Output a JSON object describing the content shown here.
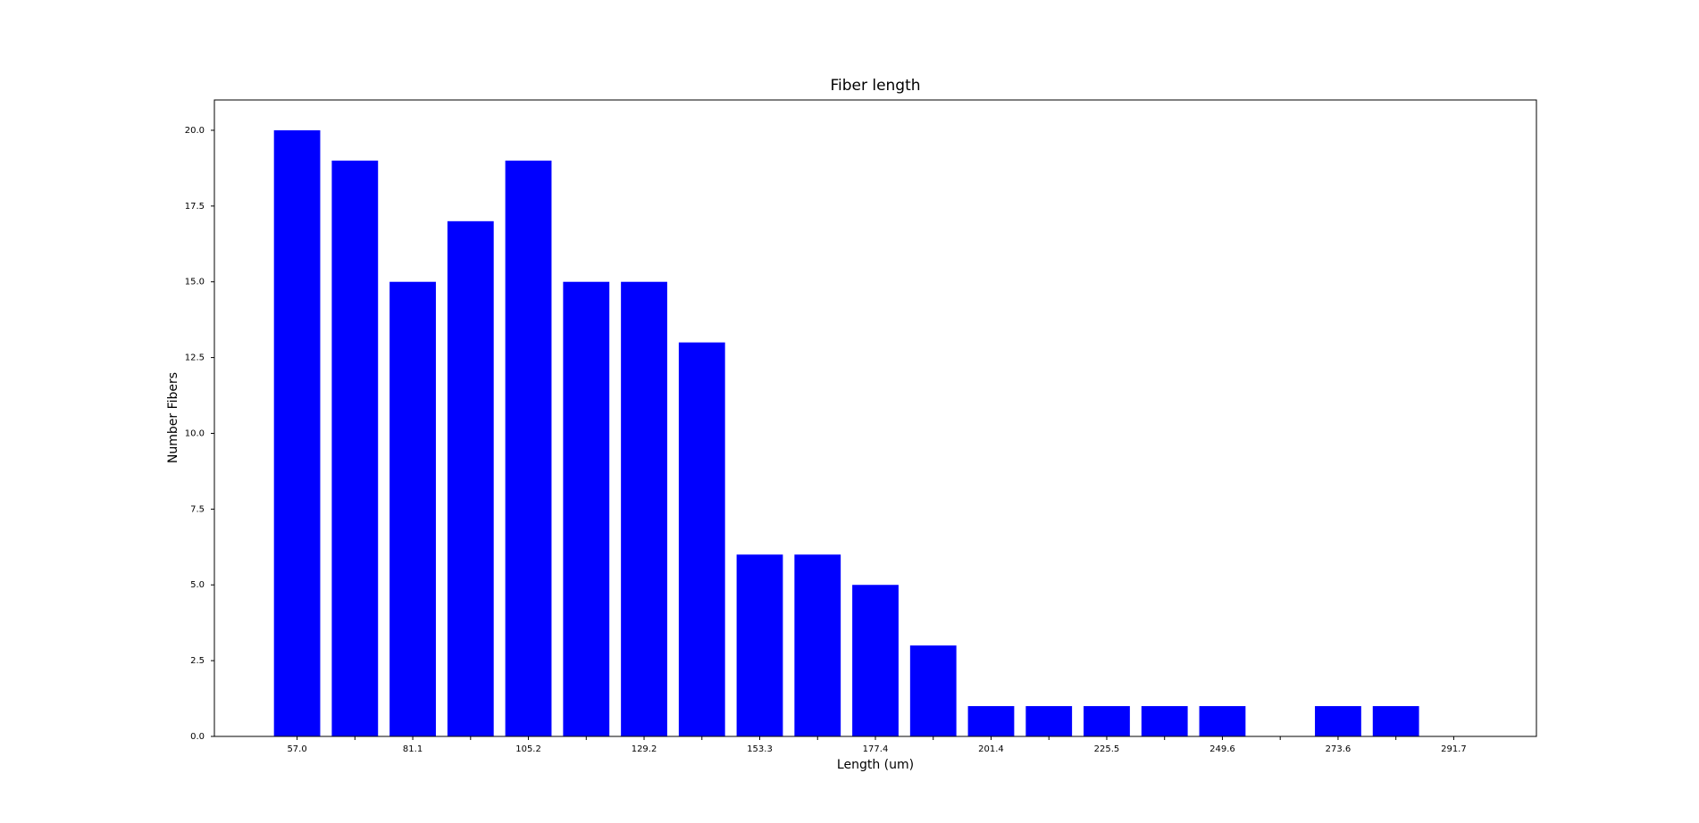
{
  "chart_data": {
    "type": "bar",
    "title": "Fiber length",
    "x_label": "Length (um)",
    "y_label": "Number Fibers",
    "categories": [
      "57.0",
      null,
      "81.1",
      null,
      "105.2",
      null,
      "129.2",
      null,
      "153.3",
      null,
      "177.4",
      null,
      "201.4",
      null,
      "225.5",
      null,
      "249.6",
      null,
      "273.6",
      null,
      "291.7"
    ],
    "values": [
      20,
      19,
      15,
      17,
      19,
      15,
      15,
      13,
      6,
      6,
      5,
      3,
      1,
      1,
      1,
      1,
      1,
      0,
      1,
      1,
      0
    ],
    "color": "#0000ff",
    "ylim": [
      0,
      21
    ],
    "yticks": [
      {
        "value": 0,
        "label": "0.0"
      },
      {
        "value": 2.5,
        "label": "2.5"
      },
      {
        "value": 5,
        "label": "5.0"
      },
      {
        "value": 7.5,
        "label": "7.5"
      },
      {
        "value": 10,
        "label": "10.0"
      },
      {
        "value": 12.5,
        "label": "12.5"
      },
      {
        "value": 15,
        "label": "15.0"
      },
      {
        "value": 17.5,
        "label": "17.5"
      },
      {
        "value": 20,
        "label": "20.0"
      }
    ],
    "grid": false
  }
}
